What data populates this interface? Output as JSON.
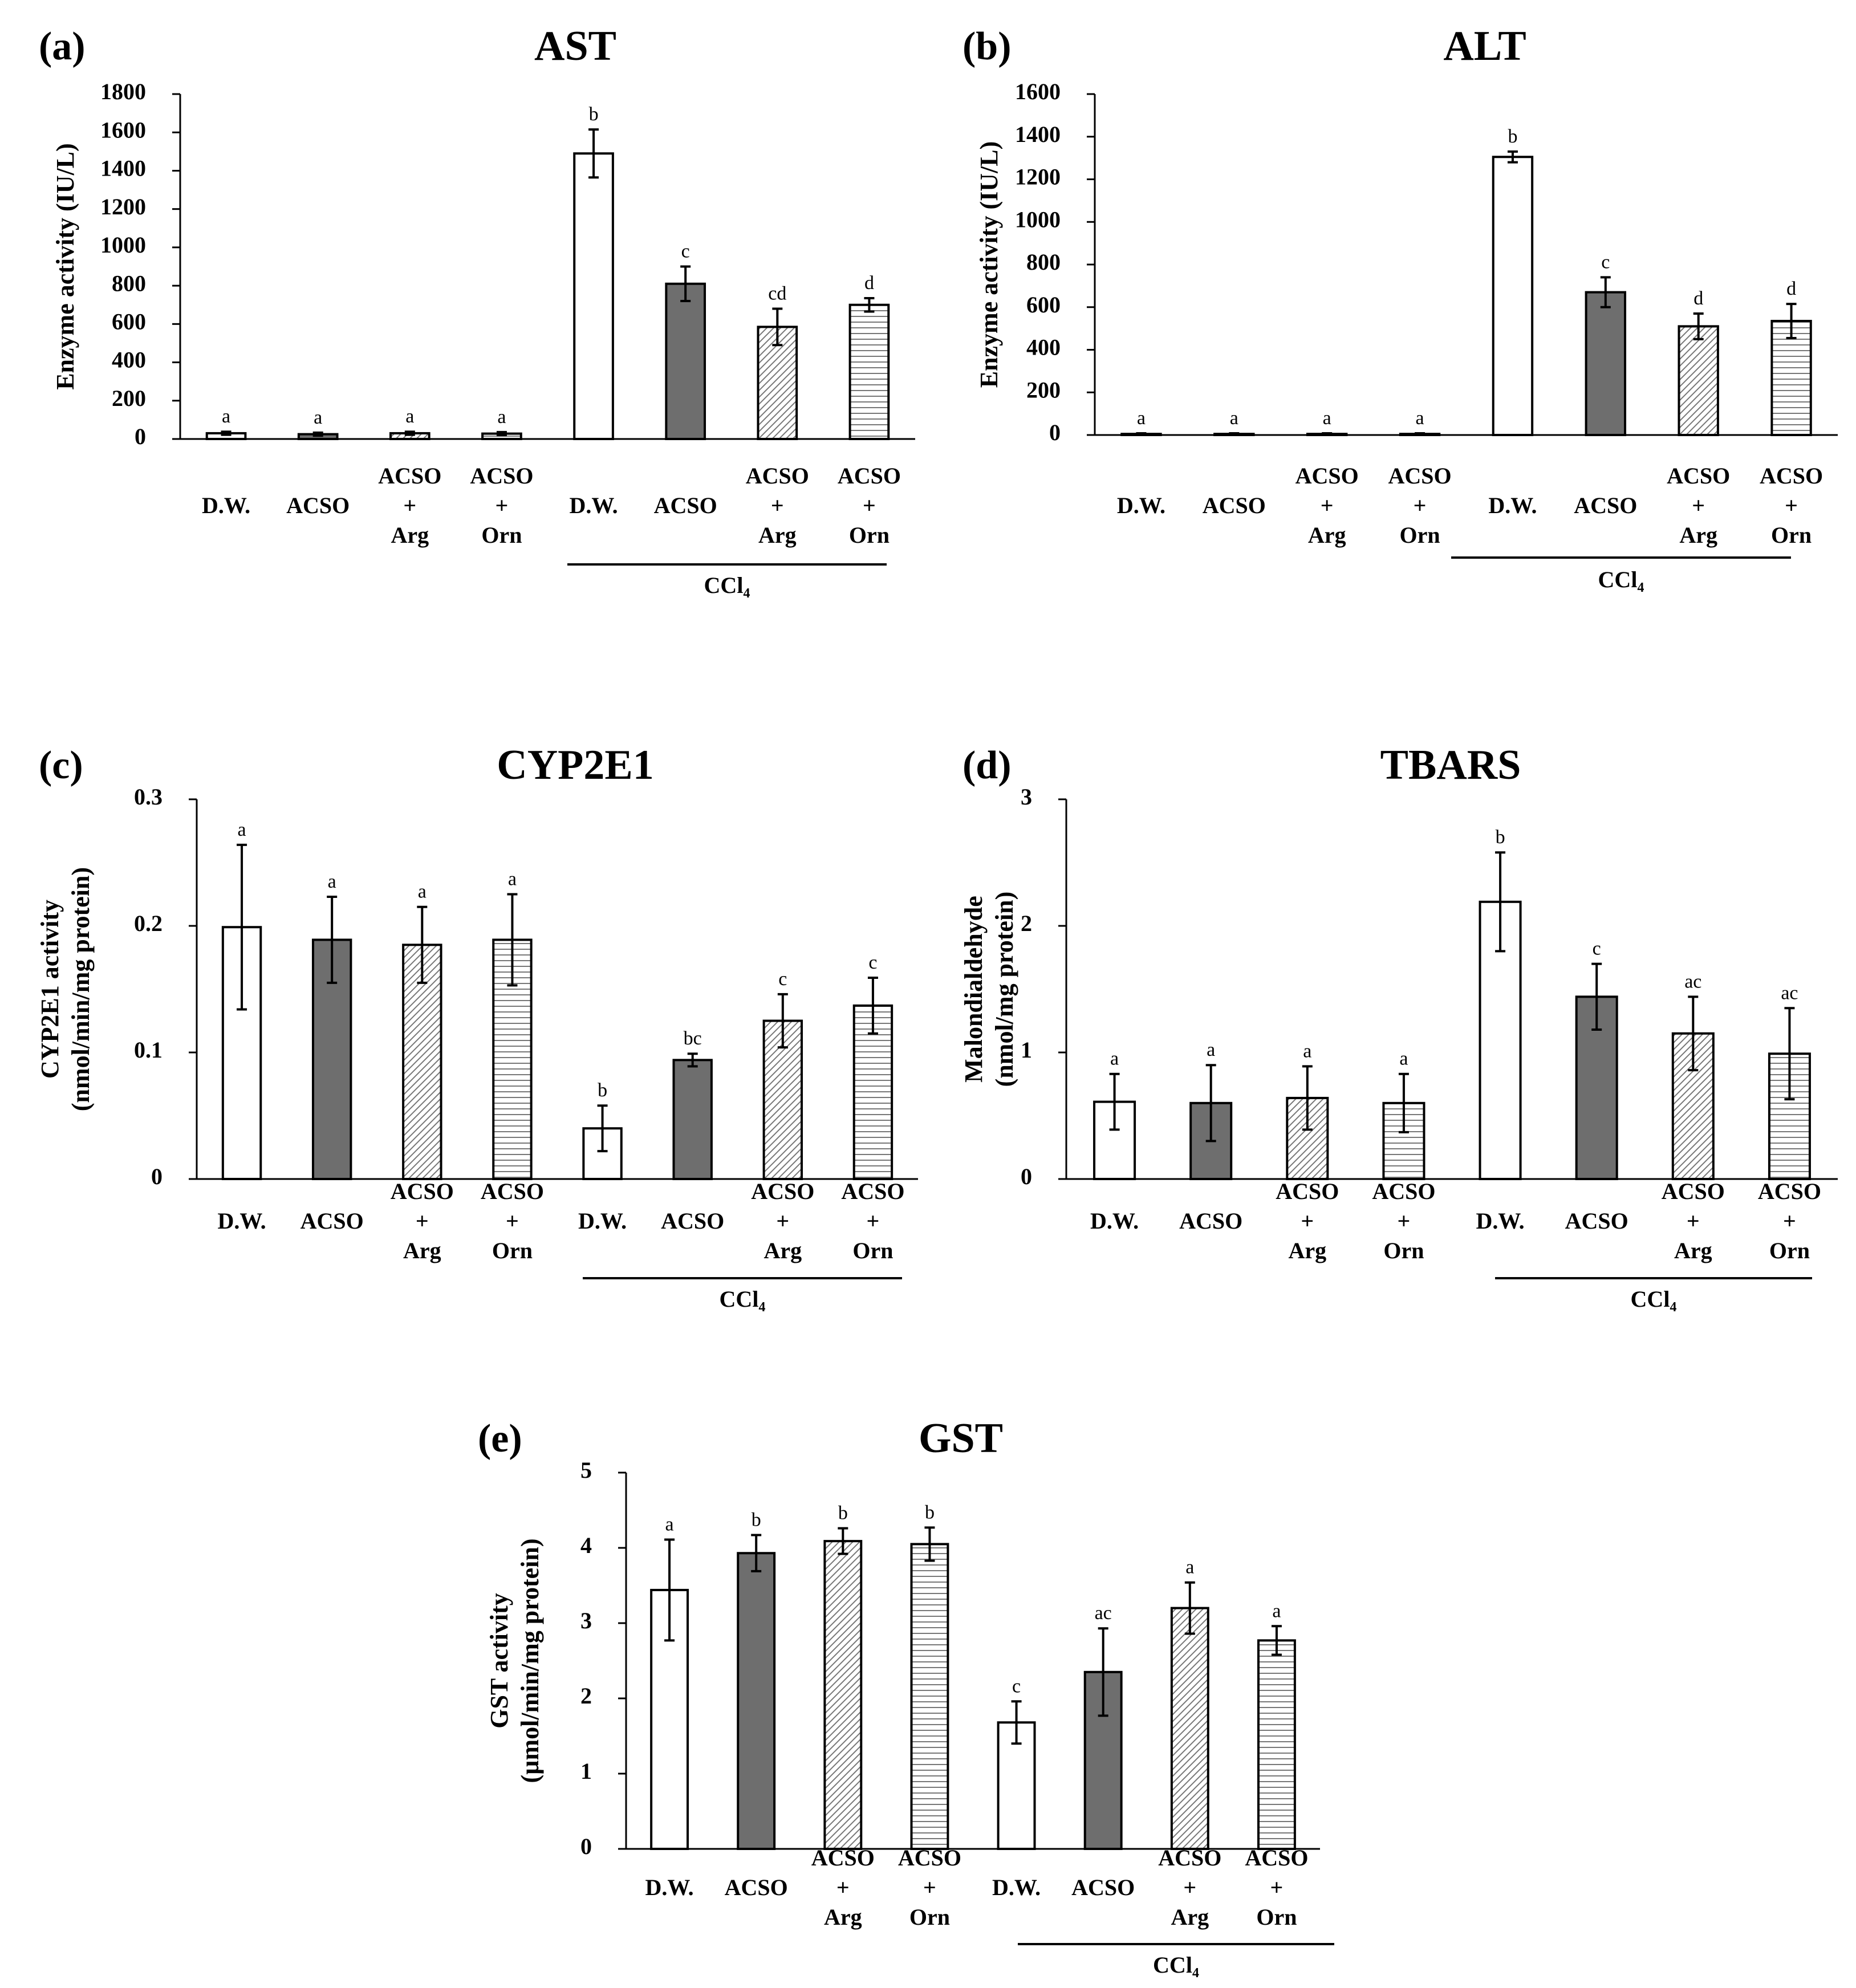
{
  "colors": {
    "white": "#ffffff",
    "dark": "#6e6e6e",
    "stroke": "#000000"
  },
  "chart_data": [
    {
      "id": "a",
      "panel_label": "(a)",
      "type": "bar",
      "title": "AST",
      "ylabel": [
        "Enzyme activity (IU/L)"
      ],
      "ylim": [
        0,
        1800
      ],
      "yticks": [
        "0",
        "200",
        "400",
        "600",
        "800",
        "1000",
        "1200",
        "1400",
        "1600",
        "1800"
      ],
      "categories": [
        [
          "D.W."
        ],
        [
          "ACSO"
        ],
        [
          "ACSO",
          "+",
          "Arg"
        ],
        [
          "ACSO",
          "+",
          "Orn"
        ],
        [
          "D.W."
        ],
        [
          "ACSO"
        ],
        [
          "ACSO",
          "+",
          "Arg"
        ],
        [
          "ACSO",
          "+",
          "Orn"
        ]
      ],
      "values": [
        30,
        25,
        30,
        28,
        1490,
        810,
        585,
        700
      ],
      "errors": [
        8,
        8,
        8,
        8,
        125,
        90,
        95,
        35
      ],
      "letters": [
        "a",
        "a",
        "a",
        "a",
        "b",
        "c",
        "cd",
        "d"
      ],
      "fills": [
        "white",
        "dark",
        "diag",
        "horiz",
        "white",
        "dark",
        "diag",
        "horiz"
      ],
      "group_label": "CCl₄"
    },
    {
      "id": "b",
      "panel_label": "(b)",
      "type": "bar",
      "title": "ALT",
      "ylabel": [
        "Enzyme activity (IU/L)"
      ],
      "ylim": [
        0,
        1600
      ],
      "yticks": [
        "0",
        "200",
        "400",
        "600",
        "800",
        "1000",
        "1200",
        "1400",
        "1600"
      ],
      "categories": [
        [
          "D.W."
        ],
        [
          "ACSO"
        ],
        [
          "ACSO",
          "+",
          "Arg"
        ],
        [
          "ACSO",
          "+",
          "Orn"
        ],
        [
          "D.W."
        ],
        [
          "ACSO"
        ],
        [
          "ACSO",
          "+",
          "Arg"
        ],
        [
          "ACSO",
          "+",
          "Orn"
        ]
      ],
      "values": [
        5,
        5,
        5,
        5,
        1305,
        670,
        510,
        535
      ],
      "errors": [
        3,
        3,
        3,
        3,
        25,
        70,
        60,
        80
      ],
      "letters": [
        "a",
        "a",
        "a",
        "a",
        "b",
        "c",
        "d",
        "d"
      ],
      "fills": [
        "white",
        "dark",
        "diag",
        "horiz",
        "white",
        "dark",
        "diag",
        "horiz"
      ],
      "group_label": "CCl₄"
    },
    {
      "id": "c",
      "panel_label": "(c)",
      "type": "bar",
      "title": "CYP2E1",
      "ylabel": [
        "CYP2E1 activity",
        "(nmol/min/mg protein)"
      ],
      "ylim": [
        0,
        0.3
      ],
      "yticks": [
        "0",
        "0.1",
        "0.2",
        "0.3"
      ],
      "categories": [
        [
          "D.W."
        ],
        [
          "ACSO"
        ],
        [
          "ACSO",
          "+",
          "Arg"
        ],
        [
          "ACSO",
          "+",
          "Orn"
        ],
        [
          "D.W."
        ],
        [
          "ACSO"
        ],
        [
          "ACSO",
          "+",
          "Arg"
        ],
        [
          "ACSO",
          "+",
          "Orn"
        ]
      ],
      "values": [
        0.199,
        0.189,
        0.185,
        0.189,
        0.04,
        0.094,
        0.125,
        0.137
      ],
      "errors": [
        0.065,
        0.034,
        0.03,
        0.036,
        0.018,
        0.005,
        0.021,
        0.022
      ],
      "letters": [
        "a",
        "a",
        "a",
        "a",
        "b",
        "bc",
        "c",
        "c"
      ],
      "fills": [
        "white",
        "dark",
        "diag",
        "horiz",
        "white",
        "dark",
        "diag",
        "horiz"
      ],
      "group_label": "CCl₄"
    },
    {
      "id": "d",
      "panel_label": "(d)",
      "type": "bar",
      "title": "TBARS",
      "ylabel": [
        "Malondialdehyde",
        "(nmol/mg protein)"
      ],
      "ylim": [
        0,
        3
      ],
      "yticks": [
        "0",
        "1",
        "2",
        "3"
      ],
      "categories": [
        [
          "D.W."
        ],
        [
          "ACSO"
        ],
        [
          "ACSO",
          "+",
          "Arg"
        ],
        [
          "ACSO",
          "+",
          "Orn"
        ],
        [
          "D.W."
        ],
        [
          "ACSO"
        ],
        [
          "ACSO",
          "+",
          "Arg"
        ],
        [
          "ACSO",
          "+",
          "Orn"
        ]
      ],
      "values": [
        0.61,
        0.6,
        0.64,
        0.6,
        2.19,
        1.44,
        1.15,
        0.99
      ],
      "errors": [
        0.22,
        0.3,
        0.25,
        0.23,
        0.39,
        0.26,
        0.29,
        0.36
      ],
      "letters": [
        "a",
        "a",
        "a",
        "a",
        "b",
        "c",
        "ac",
        "ac"
      ],
      "fills": [
        "white",
        "dark",
        "diag",
        "horiz",
        "white",
        "dark",
        "diag",
        "horiz"
      ],
      "group_label": "CCl₄"
    },
    {
      "id": "e",
      "panel_label": "(e)",
      "type": "bar",
      "title": "GST",
      "ylabel": [
        "GST activity",
        "(µmol/min/mg protein)"
      ],
      "ylim": [
        0,
        5
      ],
      "yticks": [
        "0",
        "1",
        "2",
        "3",
        "4",
        "5"
      ],
      "categories": [
        [
          "D.W."
        ],
        [
          "ACSO"
        ],
        [
          "ACSO",
          "+",
          "Arg"
        ],
        [
          "ACSO",
          "+",
          "Orn"
        ],
        [
          "D.W."
        ],
        [
          "ACSO"
        ],
        [
          "ACSO",
          "+",
          "Arg"
        ],
        [
          "ACSO",
          "+",
          "Orn"
        ]
      ],
      "values": [
        3.44,
        3.93,
        4.09,
        4.05,
        1.68,
        2.35,
        3.2,
        2.77
      ],
      "errors": [
        0.67,
        0.24,
        0.17,
        0.22,
        0.28,
        0.58,
        0.34,
        0.19
      ],
      "letters": [
        "a",
        "b",
        "b",
        "b",
        "c",
        "ac",
        "a",
        "a"
      ],
      "fills": [
        "white",
        "dark",
        "diag",
        "horiz",
        "white",
        "dark",
        "diag",
        "horiz"
      ],
      "group_label": "CCl₄"
    }
  ]
}
